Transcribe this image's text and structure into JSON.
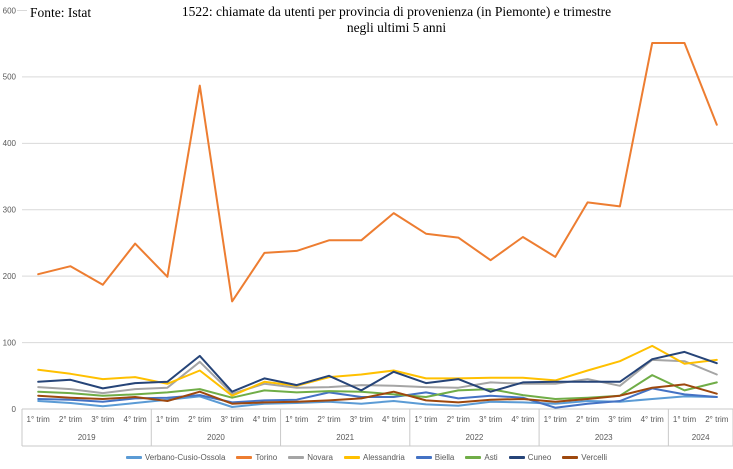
{
  "header": {
    "source_label": "Fonte: Istat",
    "title_line1": "1522: chiamate da utenti per provincia di provenienza (in Piemonte) e trimestre",
    "title_line2": "negli ultimi 5 anni"
  },
  "colors": {
    "gridline": "#D9D9D9",
    "axis_line": "#C9C9C9",
    "tick_text": "#595959"
  },
  "chart_data": {
    "type": "line",
    "title": "1522: chiamate da utenti per provincia di provenienza (in Piemonte) e trimestre negli ultimi 5 anni",
    "xlabel": "",
    "ylabel": "",
    "ylim": [
      0,
      600
    ],
    "y_ticks": [
      0,
      100,
      200,
      300,
      400,
      500,
      600
    ],
    "grid": "horizontal",
    "legend_position": "bottom",
    "quarter_labels": [
      "1° trim",
      "2° trim",
      "3° trim",
      "4° trim"
    ],
    "years": [
      {
        "label": "2019",
        "quarters": 4
      },
      {
        "label": "2020",
        "quarters": 4
      },
      {
        "label": "2021",
        "quarters": 4
      },
      {
        "label": "2022",
        "quarters": 4
      },
      {
        "label": "2023",
        "quarters": 4
      },
      {
        "label": "2024",
        "quarters": 2
      }
    ],
    "series": [
      {
        "name": "Verbano-Cusio-Ossola",
        "color": "#5B9BD5",
        "values": [
          12,
          9,
          4,
          9,
          14,
          19,
          3,
          8,
          9,
          11,
          8,
          12,
          7,
          5,
          11,
          10,
          8,
          12,
          11,
          15,
          19,
          18
        ]
      },
      {
        "name": "Torino",
        "color": "#ED7D31",
        "values": [
          203,
          215,
          187,
          249,
          199,
          487,
          162,
          235,
          238,
          254,
          254,
          295,
          264,
          258,
          224,
          259,
          229,
          311,
          305,
          551,
          551,
          428
        ]
      },
      {
        "name": "Novara",
        "color": "#A5A5A5",
        "values": [
          33,
          30,
          24,
          30,
          32,
          71,
          23,
          38,
          32,
          33,
          36,
          35,
          33,
          32,
          40,
          38,
          38,
          45,
          35,
          74,
          72,
          52
        ]
      },
      {
        "name": "Alessandria",
        "color": "#FFC000",
        "values": [
          59,
          53,
          45,
          48,
          38,
          58,
          20,
          41,
          35,
          48,
          52,
          58,
          46,
          46,
          47,
          47,
          43,
          58,
          72,
          95,
          68,
          74
        ]
      },
      {
        "name": "Biella",
        "color": "#4472C4",
        "values": [
          15,
          14,
          11,
          16,
          17,
          21,
          10,
          13,
          14,
          25,
          18,
          18,
          25,
          16,
          20,
          17,
          2,
          8,
          12,
          31,
          22,
          18
        ]
      },
      {
        "name": "Asti",
        "color": "#70AD47",
        "values": [
          26,
          24,
          20,
          22,
          25,
          30,
          17,
          28,
          25,
          27,
          26,
          22,
          18,
          28,
          30,
          21,
          15,
          17,
          20,
          51,
          28,
          40
        ]
      },
      {
        "name": "Cuneo",
        "color": "#264478",
        "values": [
          41,
          44,
          31,
          39,
          41,
          80,
          26,
          46,
          36,
          50,
          28,
          56,
          39,
          45,
          26,
          40,
          41,
          41,
          41,
          75,
          86,
          69
        ]
      },
      {
        "name": "Vercelli",
        "color": "#9E480E",
        "values": [
          20,
          17,
          15,
          18,
          12,
          26,
          8,
          10,
          11,
          13,
          16,
          26,
          13,
          10,
          14,
          15,
          11,
          15,
          20,
          32,
          37,
          23
        ]
      }
    ]
  }
}
